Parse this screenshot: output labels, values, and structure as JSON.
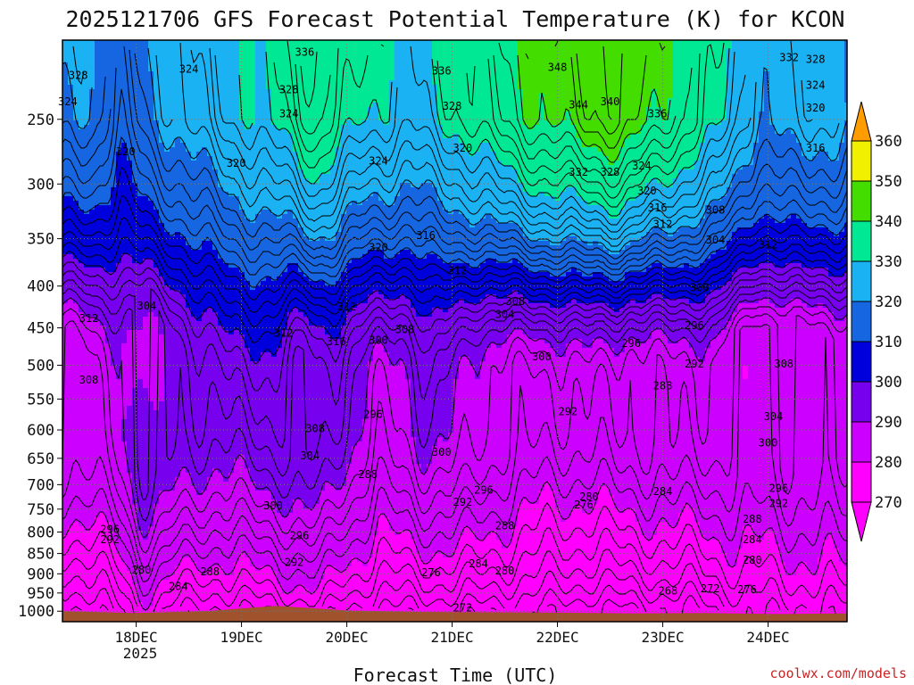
{
  "chart_data": {
    "type": "heatmap",
    "title": "2025121706 GFS Forecast Potential Temperature (K) for KCON",
    "xlabel": "Forecast Time (UTC)",
    "ylabel": "",
    "credit": "coolwx.com/models",
    "x_tick_labels": [
      "18DEC",
      "19DEC",
      "20DEC",
      "21DEC",
      "22DEC",
      "23DEC",
      "24DEC"
    ],
    "x_tick_sublabel": "2025",
    "xlim_days": [
      17.3,
      24.75
    ],
    "x_ticks_days": [
      18,
      19,
      20,
      21,
      22,
      23,
      24
    ],
    "y_ticks_hpa": [
      250,
      300,
      350,
      400,
      450,
      500,
      550,
      600,
      650,
      700,
      750,
      800,
      850,
      900,
      950,
      1000
    ],
    "ylim_hpa": [
      1030,
      200
    ],
    "y_scale": "log",
    "grid": "dotted",
    "contour_interval_K": 2,
    "colorbar": {
      "levels": [
        270,
        280,
        290,
        300,
        310,
        320,
        330,
        340,
        350,
        360
      ],
      "colors": [
        "#ff00ff",
        "#cc00ff",
        "#7700ee",
        "#0000dd",
        "#1566e0",
        "#1ab2f2",
        "#00e893",
        "#44dd00",
        "#f0f000",
        "#ff9c00"
      ],
      "extend": "both"
    },
    "ground": {
      "color": "#a0522d",
      "surface_pressure_hpa": [
        1000,
        1005,
        1000,
        985,
        998,
        1002,
        1003,
        1004,
        1006,
        1005,
        1008,
        1006
      ]
    },
    "contour_labels": [
      {
        "x": 17.45,
        "p": 221,
        "v": 328
      },
      {
        "x": 17.35,
        "p": 238,
        "v": 324
      },
      {
        "x": 17.9,
        "p": 274,
        "v": 320
      },
      {
        "x": 18.5,
        "p": 217,
        "v": 324
      },
      {
        "x": 19.6,
        "p": 207,
        "v": 336
      },
      {
        "x": 19.45,
        "p": 230,
        "v": 328
      },
      {
        "x": 19.45,
        "p": 246,
        "v": 324
      },
      {
        "x": 18.95,
        "p": 283,
        "v": 320
      },
      {
        "x": 20.3,
        "p": 281,
        "v": 324
      },
      {
        "x": 20.9,
        "p": 218,
        "v": 336
      },
      {
        "x": 21.0,
        "p": 241,
        "v": 328
      },
      {
        "x": 21.1,
        "p": 271,
        "v": 320
      },
      {
        "x": 22.0,
        "p": 216,
        "v": 348
      },
      {
        "x": 22.2,
        "p": 240,
        "v": 344
      },
      {
        "x": 22.5,
        "p": 238,
        "v": 340
      },
      {
        "x": 22.95,
        "p": 246,
        "v": 336
      },
      {
        "x": 22.2,
        "p": 290,
        "v": 332
      },
      {
        "x": 22.5,
        "p": 290,
        "v": 328
      },
      {
        "x": 22.8,
        "p": 285,
        "v": 324
      },
      {
        "x": 22.85,
        "p": 306,
        "v": 320
      },
      {
        "x": 22.95,
        "p": 321,
        "v": 316
      },
      {
        "x": 23.0,
        "p": 336,
        "v": 312
      },
      {
        "x": 23.5,
        "p": 323,
        "v": 308
      },
      {
        "x": 23.5,
        "p": 351,
        "v": 304
      },
      {
        "x": 24.2,
        "p": 210,
        "v": 332
      },
      {
        "x": 24.45,
        "p": 211,
        "v": 328
      },
      {
        "x": 24.45,
        "p": 227,
        "v": 324
      },
      {
        "x": 24.45,
        "p": 242,
        "v": 320
      },
      {
        "x": 24.45,
        "p": 271,
        "v": 316
      },
      {
        "x": 24.0,
        "p": 356,
        "v": 312
      },
      {
        "x": 23.35,
        "p": 402,
        "v": 300
      },
      {
        "x": 20.3,
        "p": 359,
        "v": 320
      },
      {
        "x": 20.75,
        "p": 347,
        "v": 316
      },
      {
        "x": 21.05,
        "p": 383,
        "v": 312
      },
      {
        "x": 21.6,
        "p": 418,
        "v": 308
      },
      {
        "x": 21.5,
        "p": 433,
        "v": 304
      },
      {
        "x": 19.4,
        "p": 457,
        "v": 312
      },
      {
        "x": 19.9,
        "p": 468,
        "v": 316
      },
      {
        "x": 17.55,
        "p": 438,
        "v": 312
      },
      {
        "x": 18.1,
        "p": 423,
        "v": 304
      },
      {
        "x": 17.55,
        "p": 521,
        "v": 308
      },
      {
        "x": 20.0,
        "p": 424,
        "v": 312
      },
      {
        "x": 20.3,
        "p": 466,
        "v": 300
      },
      {
        "x": 20.55,
        "p": 452,
        "v": 308
      },
      {
        "x": 21.85,
        "p": 488,
        "v": 300
      },
      {
        "x": 22.7,
        "p": 470,
        "v": 296
      },
      {
        "x": 23.3,
        "p": 447,
        "v": 296
      },
      {
        "x": 23.3,
        "p": 498,
        "v": 292
      },
      {
        "x": 23.0,
        "p": 530,
        "v": 288
      },
      {
        "x": 19.65,
        "p": 645,
        "v": 304
      },
      {
        "x": 19.7,
        "p": 598,
        "v": 308
      },
      {
        "x": 20.25,
        "p": 574,
        "v": 296
      },
      {
        "x": 20.2,
        "p": 680,
        "v": 288
      },
      {
        "x": 20.9,
        "p": 639,
        "v": 300
      },
      {
        "x": 21.3,
        "p": 711,
        "v": 296
      },
      {
        "x": 21.1,
        "p": 735,
        "v": 292
      },
      {
        "x": 21.5,
        "p": 786,
        "v": 288
      },
      {
        "x": 21.25,
        "p": 875,
        "v": 284
      },
      {
        "x": 21.5,
        "p": 893,
        "v": 280
      },
      {
        "x": 20.8,
        "p": 897,
        "v": 276
      },
      {
        "x": 21.1,
        "p": 991,
        "v": 272
      },
      {
        "x": 22.1,
        "p": 570,
        "v": 292
      },
      {
        "x": 22.3,
        "p": 724,
        "v": 280
      },
      {
        "x": 22.25,
        "p": 741,
        "v": 276
      },
      {
        "x": 23.0,
        "p": 714,
        "v": 284
      },
      {
        "x": 23.05,
        "p": 944,
        "v": 268
      },
      {
        "x": 23.45,
        "p": 939,
        "v": 272
      },
      {
        "x": 23.8,
        "p": 941,
        "v": 276
      },
      {
        "x": 23.85,
        "p": 866,
        "v": 280
      },
      {
        "x": 23.85,
        "p": 817,
        "v": 284
      },
      {
        "x": 23.85,
        "p": 771,
        "v": 288
      },
      {
        "x": 24.1,
        "p": 738,
        "v": 292
      },
      {
        "x": 24.1,
        "p": 707,
        "v": 296
      },
      {
        "x": 24.0,
        "p": 622,
        "v": 300
      },
      {
        "x": 24.05,
        "p": 578,
        "v": 304
      },
      {
        "x": 24.15,
        "p": 498,
        "v": 308
      },
      {
        "x": 19.3,
        "p": 743,
        "v": 300
      },
      {
        "x": 19.55,
        "p": 808,
        "v": 296
      },
      {
        "x": 19.5,
        "p": 871,
        "v": 292
      },
      {
        "x": 18.7,
        "p": 895,
        "v": 288
      },
      {
        "x": 18.4,
        "p": 933,
        "v": 284
      },
      {
        "x": 18.05,
        "p": 890,
        "v": 280
      },
      {
        "x": 17.75,
        "p": 817,
        "v": 292
      },
      {
        "x": 17.75,
        "p": 794,
        "v": 296
      }
    ]
  }
}
